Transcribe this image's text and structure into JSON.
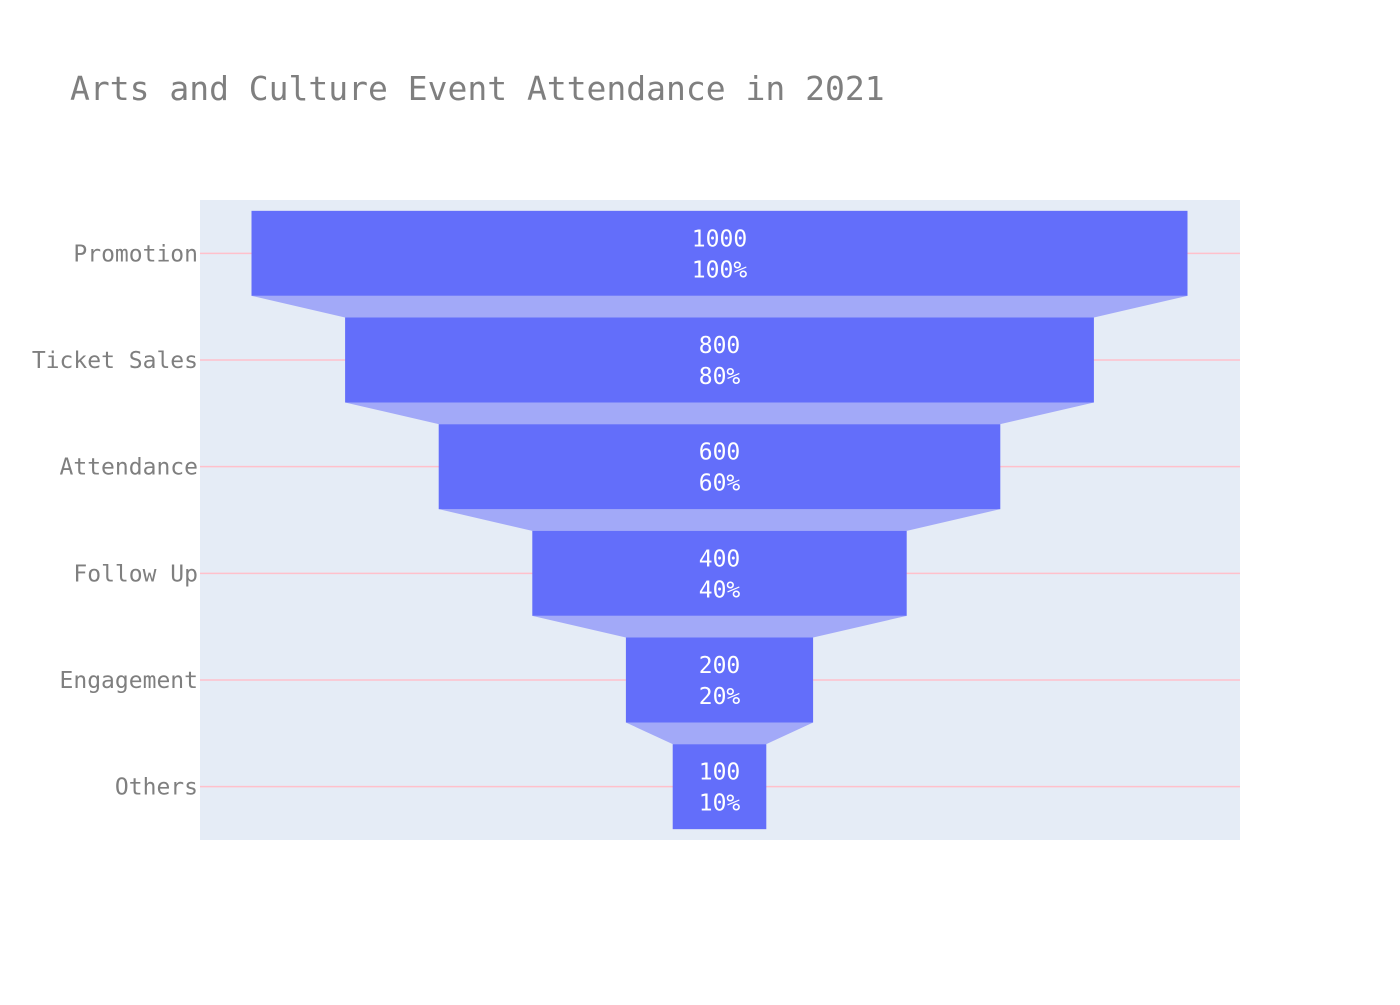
{
  "chart_data": {
    "type": "funnel",
    "title": "Arts and Culture Event Attendance in 2021",
    "categories": [
      "Promotion",
      "Ticket Sales",
      "Attendance",
      "Follow Up",
      "Engagement",
      "Others"
    ],
    "values": [
      1000,
      800,
      600,
      400,
      200,
      100
    ],
    "percent_of_initial": [
      "100%",
      "80%",
      "60%",
      "40%",
      "20%",
      "10%"
    ],
    "grid": true,
    "colors": {
      "bar": "#636efa",
      "connector": "#a2a9f8",
      "plot_background": "#e5ecf6",
      "gridline": "#ffc0cb",
      "title_text": "#7f7f7f",
      "bar_text": "#ffffff"
    }
  }
}
